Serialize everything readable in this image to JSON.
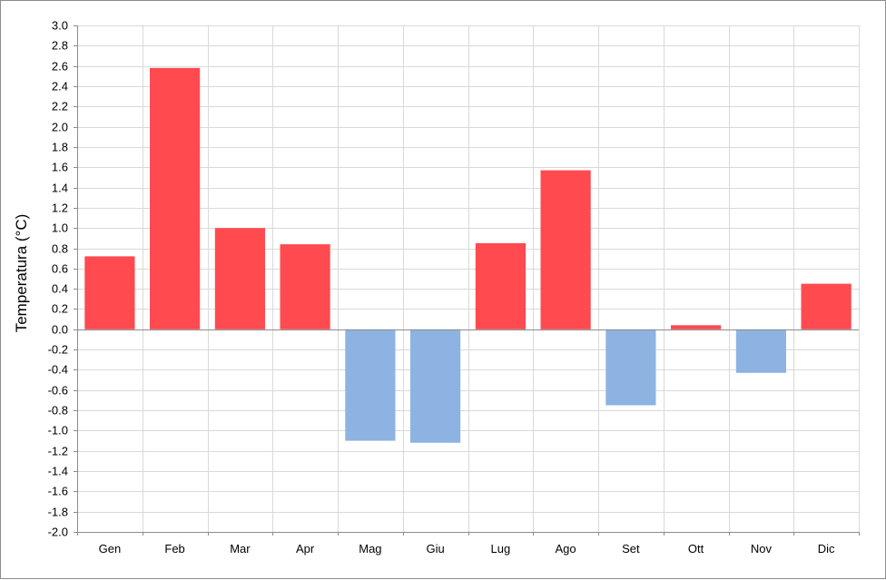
{
  "chart_data": {
    "type": "bar",
    "title": "",
    "xlabel": "",
    "ylabel": "Temperatura  (°C)",
    "categories": [
      "Gen",
      "Feb",
      "Mar",
      "Apr",
      "Mag",
      "Giu",
      "Lug",
      "Ago",
      "Set",
      "Ott",
      "Nov",
      "Dic"
    ],
    "values": [
      0.72,
      2.58,
      1.0,
      0.84,
      -1.1,
      -1.12,
      0.85,
      1.57,
      -0.75,
      0.04,
      -0.43,
      0.45
    ],
    "ylim": [
      -2.0,
      3.0
    ],
    "ytick_step": 0.2,
    "grid": true,
    "colors": {
      "positive": "#ff4a4f",
      "negative": "#8db3e2",
      "grid": "#d9d9d9",
      "axis": "#8c8c8c"
    }
  }
}
